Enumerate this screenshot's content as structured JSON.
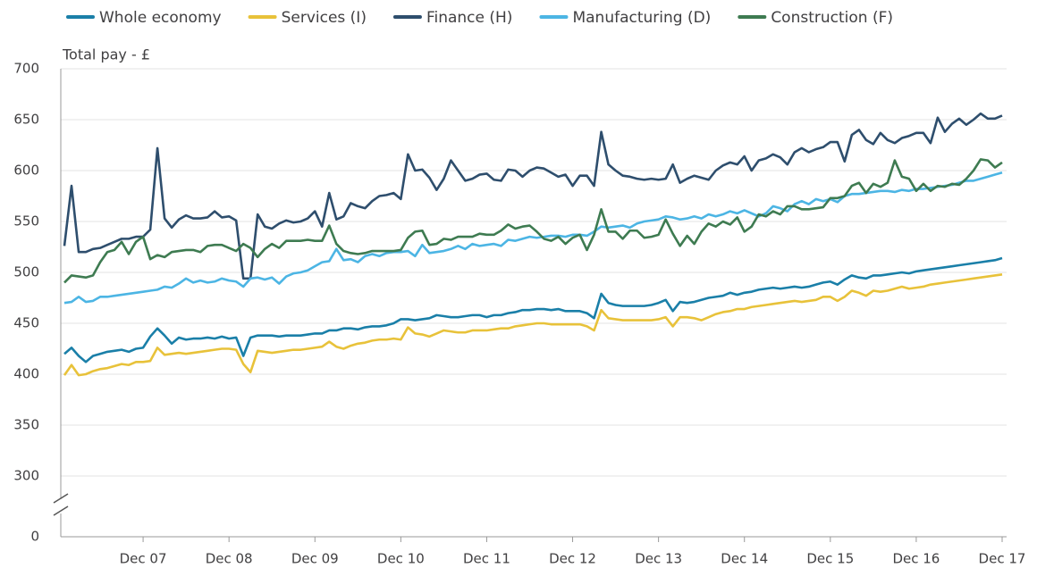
{
  "chart_data": {
    "type": "line",
    "y_label": "Total pay - £",
    "categories": [
      null,
      null,
      null,
      null,
      null,
      null,
      null,
      null,
      null,
      null,
      null,
      "Dec 07",
      null,
      null,
      null,
      null,
      null,
      null,
      null,
      null,
      null,
      null,
      null,
      "Dec 08",
      null,
      null,
      null,
      null,
      null,
      null,
      null,
      null,
      null,
      null,
      null,
      "Dec 09",
      null,
      null,
      null,
      null,
      null,
      null,
      null,
      null,
      null,
      null,
      null,
      "Dec 10",
      null,
      null,
      null,
      null,
      null,
      null,
      null,
      null,
      null,
      null,
      null,
      "Dec 11",
      null,
      null,
      null,
      null,
      null,
      null,
      null,
      null,
      null,
      null,
      null,
      "Dec 12",
      null,
      null,
      null,
      null,
      null,
      null,
      null,
      null,
      null,
      null,
      null,
      "Dec 13",
      null,
      null,
      null,
      null,
      null,
      null,
      null,
      null,
      null,
      null,
      null,
      "Dec 14",
      null,
      null,
      null,
      null,
      null,
      null,
      null,
      null,
      null,
      null,
      null,
      "Dec 15",
      null,
      null,
      null,
      null,
      null,
      null,
      null,
      null,
      null,
      null,
      null,
      "Dec 16",
      null,
      null,
      null,
      null,
      null,
      null,
      null,
      null,
      null,
      null,
      null,
      "Dec 17"
    ],
    "series": [
      {
        "name": "Whole economy",
        "color": "#1a7fa8",
        "values": [
          420,
          426,
          418,
          412,
          418,
          420,
          422,
          423,
          424,
          422,
          425,
          426,
          437,
          445,
          438,
          430,
          436,
          434,
          435,
          435,
          436,
          435,
          437,
          435,
          436,
          418,
          436,
          438,
          438,
          438,
          437,
          438,
          438,
          438,
          439,
          440,
          440,
          443,
          443,
          445,
          445,
          444,
          446,
          447,
          447,
          448,
          450,
          454,
          454,
          453,
          454,
          455,
          458,
          457,
          456,
          456,
          457,
          458,
          458,
          456,
          458,
          458,
          460,
          461,
          463,
          463,
          464,
          464,
          463,
          464,
          462,
          462,
          462,
          460,
          455,
          479,
          470,
          468,
          467,
          467,
          467,
          467,
          468,
          470,
          473,
          462,
          471,
          470,
          471,
          473,
          475,
          476,
          477,
          480,
          478,
          480,
          481,
          483,
          484,
          485,
          484,
          485,
          486,
          485,
          486,
          488,
          490,
          491,
          488,
          493,
          497,
          495,
          494,
          497,
          497,
          498,
          499,
          500,
          499,
          501,
          502,
          503,
          504,
          505,
          506,
          507,
          508,
          509,
          510,
          511,
          512,
          514
        ]
      },
      {
        "name": "Services (I)",
        "color": "#e8c23a",
        "values": [
          399,
          409,
          399,
          400,
          403,
          405,
          406,
          408,
          410,
          409,
          412,
          412,
          413,
          426,
          419,
          420,
          421,
          420,
          421,
          422,
          423,
          424,
          425,
          425,
          424,
          410,
          402,
          423,
          422,
          421,
          422,
          423,
          424,
          424,
          425,
          426,
          427,
          432,
          427,
          425,
          428,
          430,
          431,
          433,
          434,
          434,
          435,
          434,
          446,
          440,
          439,
          437,
          440,
          443,
          442,
          441,
          441,
          443,
          443,
          443,
          444,
          445,
          445,
          447,
          448,
          449,
          450,
          450,
          449,
          449,
          449,
          449,
          449,
          447,
          443,
          463,
          455,
          454,
          453,
          453,
          453,
          453,
          453,
          454,
          456,
          447,
          456,
          456,
          455,
          453,
          456,
          459,
          461,
          462,
          464,
          464,
          466,
          467,
          468,
          469,
          470,
          471,
          472,
          471,
          472,
          473,
          476,
          476,
          472,
          476,
          482,
          480,
          477,
          482,
          481,
          482,
          484,
          486,
          484,
          485,
          486,
          488,
          489,
          490,
          491,
          492,
          493,
          494,
          495,
          496,
          497,
          498
        ]
      },
      {
        "name": "Finance (H)",
        "color": "#2e4e6d",
        "values": [
          526,
          585,
          520,
          520,
          523,
          524,
          527,
          530,
          533,
          533,
          535,
          535,
          542,
          622,
          553,
          544,
          552,
          556,
          553,
          553,
          554,
          560,
          554,
          555,
          551,
          494,
          494,
          557,
          545,
          543,
          548,
          551,
          549,
          550,
          553,
          560,
          545,
          578,
          552,
          555,
          568,
          565,
          563,
          570,
          575,
          576,
          578,
          572,
          616,
          600,
          601,
          593,
          581,
          592,
          610,
          600,
          590,
          592,
          596,
          597,
          591,
          590,
          601,
          600,
          594,
          600,
          603,
          602,
          598,
          594,
          596,
          585,
          595,
          595,
          585,
          638,
          606,
          600,
          595,
          594,
          592,
          591,
          592,
          591,
          592,
          606,
          588,
          592,
          595,
          593,
          591,
          600,
          605,
          608,
          606,
          614,
          600,
          610,
          612,
          616,
          613,
          606,
          618,
          622,
          618,
          621,
          623,
          628,
          628,
          609,
          635,
          640,
          630,
          626,
          637,
          630,
          627,
          632,
          634,
          637,
          637,
          627,
          652,
          638,
          646,
          651,
          645,
          650,
          656,
          651,
          651,
          654
        ]
      },
      {
        "name": "Manufacturing (D)",
        "color": "#4cb5e4",
        "values": [
          470,
          471,
          476,
          471,
          472,
          476,
          476,
          477,
          478,
          479,
          480,
          481,
          482,
          483,
          486,
          485,
          489,
          494,
          490,
          492,
          490,
          491,
          494,
          492,
          491,
          486,
          494,
          495,
          493,
          495,
          489,
          496,
          499,
          500,
          502,
          506,
          510,
          511,
          523,
          512,
          513,
          510,
          516,
          518,
          516,
          519,
          520,
          520,
          521,
          516,
          527,
          519,
          520,
          521,
          523,
          526,
          523,
          528,
          526,
          527,
          528,
          526,
          532,
          531,
          533,
          535,
          534,
          535,
          536,
          536,
          535,
          537,
          537,
          536,
          540,
          545,
          544,
          545,
          546,
          544,
          548,
          550,
          551,
          552,
          555,
          554,
          552,
          553,
          555,
          553,
          557,
          555,
          557,
          560,
          558,
          561,
          558,
          555,
          558,
          565,
          563,
          560,
          567,
          570,
          567,
          572,
          570,
          572,
          569,
          575,
          577,
          577,
          578,
          579,
          580,
          580,
          579,
          581,
          580,
          582,
          582,
          583,
          584,
          585,
          586,
          588,
          590,
          590,
          592,
          594,
          596,
          598
        ]
      },
      {
        "name": "Construction (F)",
        "color": "#3e7b51",
        "values": [
          490,
          497,
          496,
          495,
          497,
          510,
          520,
          522,
          530,
          518,
          530,
          535,
          513,
          517,
          515,
          520,
          521,
          522,
          522,
          520,
          526,
          527,
          527,
          524,
          521,
          528,
          524,
          515,
          523,
          528,
          524,
          531,
          531,
          531,
          532,
          531,
          531,
          546,
          528,
          521,
          519,
          518,
          519,
          521,
          521,
          521,
          521,
          522,
          534,
          540,
          541,
          527,
          528,
          533,
          532,
          535,
          535,
          535,
          538,
          537,
          537,
          541,
          547,
          543,
          545,
          546,
          540,
          533,
          531,
          535,
          528,
          534,
          537,
          522,
          537,
          562,
          540,
          540,
          533,
          541,
          541,
          534,
          535,
          537,
          552,
          538,
          526,
          536,
          528,
          540,
          548,
          545,
          550,
          547,
          554,
          540,
          545,
          557,
          555,
          560,
          557,
          565,
          565,
          562,
          562,
          563,
          564,
          573,
          573,
          575,
          585,
          588,
          578,
          587,
          584,
          588,
          610,
          594,
          592,
          580,
          587,
          580,
          585,
          584,
          587,
          586,
          592,
          600,
          611,
          610,
          603,
          608
        ]
      }
    ],
    "ylim": [
      0,
      700
    ],
    "yticks": [
      0,
      300,
      350,
      400,
      450,
      500,
      550,
      600,
      650,
      700
    ],
    "y_break": true,
    "grid": true,
    "legend": "top"
  }
}
